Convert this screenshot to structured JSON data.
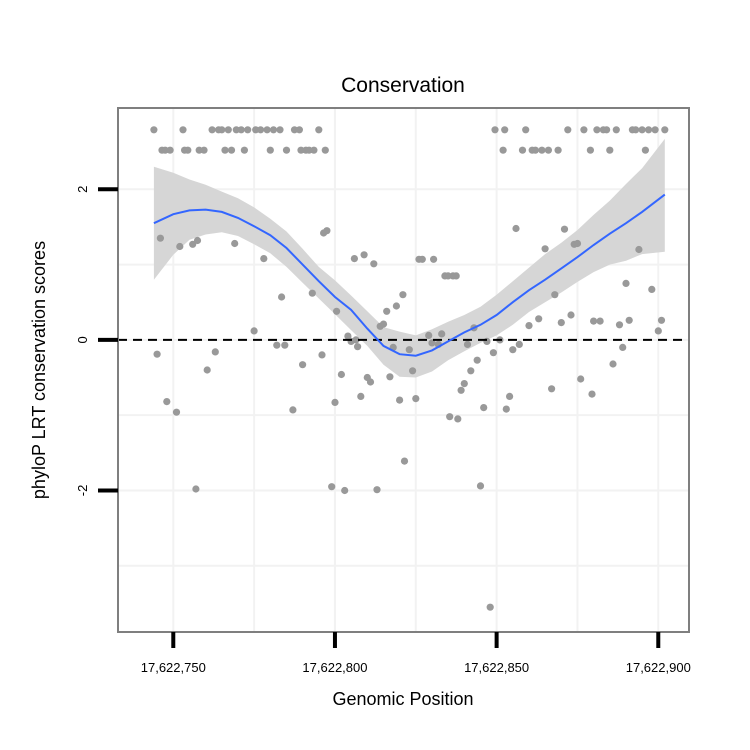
{
  "chart_data": {
    "type": "scatter",
    "title": "Conservation",
    "xlabel": "Genomic Position",
    "ylabel": "phyloP LRT conservation scores",
    "xlim": [
      17622732.9,
      17622909.5
    ],
    "ylim": [
      -3.88,
      3.08
    ],
    "x_ticks": [
      17622750,
      17622800,
      17622850,
      17622900
    ],
    "x_tick_labels": [
      "17,622,750",
      "17,622,800",
      "17,622,850",
      "17,622,900"
    ],
    "y_ticks": [
      -2,
      0,
      2
    ],
    "y_tick_labels": [
      "-2",
      "0",
      "2"
    ],
    "reference_line": {
      "y": 0,
      "style": "dashed"
    },
    "colors": {
      "points": "#999999",
      "smooth": "#3366ff",
      "ribbon": "#d6d6d6",
      "reference": "#000000",
      "grid": "#f2f2f2",
      "border": "#7f7f7f"
    },
    "points": [
      [
        17622744,
        2.79
      ],
      [
        17622745,
        -0.19
      ],
      [
        17622746,
        1.35
      ],
      [
        17622746.5,
        2.52
      ],
      [
        17622747.5,
        2.52
      ],
      [
        17622748,
        -0.82
      ],
      [
        17622749,
        2.52
      ],
      [
        17622751,
        -0.96
      ],
      [
        17622752,
        1.24
      ],
      [
        17622753,
        2.79
      ],
      [
        17622753.5,
        2.52
      ],
      [
        17622754.5,
        2.52
      ],
      [
        17622756,
        1.27
      ],
      [
        17622757,
        -1.98
      ],
      [
        17622757.5,
        1.32
      ],
      [
        17622758,
        2.52
      ],
      [
        17622759.5,
        2.52
      ],
      [
        17622760.5,
        -0.4
      ],
      [
        17622762,
        2.79
      ],
      [
        17622763,
        -0.16
      ],
      [
        17622764,
        2.79
      ],
      [
        17622765,
        2.79
      ],
      [
        17622766,
        2.52
      ],
      [
        17622767,
        2.79
      ],
      [
        17622768,
        2.52
      ],
      [
        17622769,
        1.28
      ],
      [
        17622769.5,
        2.79
      ],
      [
        17622771,
        2.79
      ],
      [
        17622772,
        2.52
      ],
      [
        17622773,
        2.79
      ],
      [
        17622775,
        0.12
      ],
      [
        17622775.5,
        2.79
      ],
      [
        17622777,
        2.79
      ],
      [
        17622778,
        1.08
      ],
      [
        17622779,
        2.79
      ],
      [
        17622780,
        2.52
      ],
      [
        17622781,
        2.79
      ],
      [
        17622782,
        -0.07
      ],
      [
        17622783,
        2.79
      ],
      [
        17622783.5,
        0.57
      ],
      [
        17622784.5,
        -0.07
      ],
      [
        17622785,
        2.52
      ],
      [
        17622787,
        -0.93
      ],
      [
        17622787.5,
        2.79
      ],
      [
        17622789,
        2.79
      ],
      [
        17622789.5,
        2.52
      ],
      [
        17622790,
        -0.33
      ],
      [
        17622791,
        2.52
      ],
      [
        17622792,
        2.52
      ],
      [
        17622793,
        0.62
      ],
      [
        17622793.5,
        2.52
      ],
      [
        17622795,
        2.79
      ],
      [
        17622796,
        -0.2
      ],
      [
        17622796.5,
        1.42
      ],
      [
        17622797.5,
        1.45
      ],
      [
        17622797,
        2.52
      ],
      [
        17622799,
        -1.95
      ],
      [
        17622800,
        -0.83
      ],
      [
        17622800.5,
        0.38
      ],
      [
        17622802,
        -0.46
      ],
      [
        17622803,
        -2.0
      ],
      [
        17622804,
        0.05
      ],
      [
        17622805,
        -0.02
      ],
      [
        17622806,
        1.08
      ],
      [
        17622806.5,
        0.0
      ],
      [
        17622807,
        -0.09
      ],
      [
        17622808,
        -0.75
      ],
      [
        17622809,
        1.13
      ],
      [
        17622810,
        -0.5
      ],
      [
        17622811,
        -0.56
      ],
      [
        17622812,
        1.01
      ],
      [
        17622813,
        -1.99
      ],
      [
        17622814,
        0.18
      ],
      [
        17622815,
        0.21
      ],
      [
        17622816,
        0.38
      ],
      [
        17622817,
        -0.49
      ],
      [
        17622818,
        -0.1
      ],
      [
        17622819,
        0.45
      ],
      [
        17622820,
        -0.8
      ],
      [
        17622821,
        0.6
      ],
      [
        17622821.5,
        -1.61
      ],
      [
        17622823,
        -0.13
      ],
      [
        17622824,
        -0.41
      ],
      [
        17622825,
        -0.78
      ],
      [
        17622826,
        1.07
      ],
      [
        17622827,
        1.07
      ],
      [
        17622829,
        0.06
      ],
      [
        17622830,
        -0.04
      ],
      [
        17622830.5,
        1.07
      ],
      [
        17622832,
        -0.06
      ],
      [
        17622833,
        0.08
      ],
      [
        17622834,
        0.85
      ],
      [
        17622835,
        0.85
      ],
      [
        17622835.5,
        -1.02
      ],
      [
        17622836.5,
        0.85
      ],
      [
        17622837.5,
        0.85
      ],
      [
        17622838,
        -1.05
      ],
      [
        17622839,
        -0.67
      ],
      [
        17622840,
        -0.58
      ],
      [
        17622841,
        -0.06
      ],
      [
        17622842,
        -0.41
      ],
      [
        17622843,
        0.16
      ],
      [
        17622844,
        -0.27
      ],
      [
        17622845,
        -1.94
      ],
      [
        17622846,
        -0.9
      ],
      [
        17622847,
        -0.02
      ],
      [
        17622848,
        -3.55
      ],
      [
        17622849,
        -0.17
      ],
      [
        17622849.5,
        2.79
      ],
      [
        17622851,
        0.0
      ],
      [
        17622852,
        2.52
      ],
      [
        17622852.5,
        2.79
      ],
      [
        17622853,
        -0.92
      ],
      [
        17622854,
        -0.75
      ],
      [
        17622855,
        -0.13
      ],
      [
        17622856,
        1.48
      ],
      [
        17622857,
        -0.06
      ],
      [
        17622858,
        2.52
      ],
      [
        17622859,
        2.79
      ],
      [
        17622860,
        0.19
      ],
      [
        17622861,
        2.52
      ],
      [
        17622862,
        2.52
      ],
      [
        17622863,
        0.28
      ],
      [
        17622864,
        2.52
      ],
      [
        17622865,
        1.21
      ],
      [
        17622866,
        2.52
      ],
      [
        17622867,
        -0.65
      ],
      [
        17622868,
        0.6
      ],
      [
        17622869,
        2.52
      ],
      [
        17622870,
        0.23
      ],
      [
        17622871,
        1.47
      ],
      [
        17622872,
        2.79
      ],
      [
        17622873,
        0.33
      ],
      [
        17622874,
        1.27
      ],
      [
        17622875,
        1.28
      ],
      [
        17622876,
        -0.52
      ],
      [
        17622877,
        2.79
      ],
      [
        17622879,
        2.52
      ],
      [
        17622879.5,
        -0.72
      ],
      [
        17622880,
        0.25
      ],
      [
        17622881,
        2.79
      ],
      [
        17622882,
        0.25
      ],
      [
        17622883,
        2.79
      ],
      [
        17622884,
        2.79
      ],
      [
        17622885,
        2.52
      ],
      [
        17622886,
        -0.32
      ],
      [
        17622887,
        2.79
      ],
      [
        17622888,
        0.2
      ],
      [
        17622889,
        -0.1
      ],
      [
        17622890,
        0.75
      ],
      [
        17622891,
        0.26
      ],
      [
        17622892,
        2.79
      ],
      [
        17622893,
        2.79
      ],
      [
        17622894,
        1.2
      ],
      [
        17622895,
        2.79
      ],
      [
        17622896,
        2.52
      ],
      [
        17622897,
        2.79
      ],
      [
        17622898,
        0.67
      ],
      [
        17622899,
        2.79
      ],
      [
        17622900,
        0.12
      ],
      [
        17622901,
        0.26
      ],
      [
        17622902,
        2.79
      ]
    ],
    "smooth_line": [
      [
        17622744,
        1.55
      ],
      [
        17622750,
        1.67
      ],
      [
        17622755,
        1.72
      ],
      [
        17622760,
        1.73
      ],
      [
        17622765,
        1.7
      ],
      [
        17622770,
        1.62
      ],
      [
        17622775,
        1.51
      ],
      [
        17622780,
        1.39
      ],
      [
        17622785,
        1.22
      ],
      [
        17622790,
        1.0
      ],
      [
        17622795,
        0.78
      ],
      [
        17622800,
        0.57
      ],
      [
        17622805,
        0.4
      ],
      [
        17622810,
        0.15
      ],
      [
        17622815,
        -0.08
      ],
      [
        17622820,
        -0.19
      ],
      [
        17622825,
        -0.21
      ],
      [
        17622830,
        -0.14
      ],
      [
        17622835,
        -0.02
      ],
      [
        17622840,
        0.1
      ],
      [
        17622845,
        0.2
      ],
      [
        17622850,
        0.33
      ],
      [
        17622855,
        0.5
      ],
      [
        17622860,
        0.66
      ],
      [
        17622865,
        0.8
      ],
      [
        17622870,
        0.95
      ],
      [
        17622875,
        1.1
      ],
      [
        17622880,
        1.26
      ],
      [
        17622885,
        1.41
      ],
      [
        17622890,
        1.55
      ],
      [
        17622895,
        1.7
      ],
      [
        17622902,
        1.93
      ]
    ],
    "ribbon_upper": [
      [
        17622744,
        2.3
      ],
      [
        17622750,
        2.22
      ],
      [
        17622755,
        2.13
      ],
      [
        17622760,
        2.06
      ],
      [
        17622765,
        1.97
      ],
      [
        17622770,
        1.88
      ],
      [
        17622775,
        1.76
      ],
      [
        17622780,
        1.61
      ],
      [
        17622785,
        1.44
      ],
      [
        17622790,
        1.21
      ],
      [
        17622795,
        0.97
      ],
      [
        17622800,
        0.79
      ],
      [
        17622805,
        0.59
      ],
      [
        17622810,
        0.38
      ],
      [
        17622815,
        0.17
      ],
      [
        17622820,
        0.11
      ],
      [
        17622825,
        0.06
      ],
      [
        17622830,
        0.14
      ],
      [
        17622835,
        0.24
      ],
      [
        17622840,
        0.33
      ],
      [
        17622845,
        0.44
      ],
      [
        17622850,
        0.6
      ],
      [
        17622855,
        0.78
      ],
      [
        17622860,
        0.96
      ],
      [
        17622865,
        1.14
      ],
      [
        17622870,
        1.29
      ],
      [
        17622875,
        1.46
      ],
      [
        17622880,
        1.66
      ],
      [
        17622885,
        1.85
      ],
      [
        17622890,
        2.07
      ],
      [
        17622895,
        2.28
      ],
      [
        17622902,
        2.67
      ]
    ],
    "ribbon_lower": [
      [
        17622744,
        0.8
      ],
      [
        17622750,
        1.13
      ],
      [
        17622755,
        1.33
      ],
      [
        17622760,
        1.4
      ],
      [
        17622765,
        1.43
      ],
      [
        17622770,
        1.38
      ],
      [
        17622775,
        1.27
      ],
      [
        17622780,
        1.15
      ],
      [
        17622785,
        0.97
      ],
      [
        17622790,
        0.76
      ],
      [
        17622795,
        0.55
      ],
      [
        17622800,
        0.34
      ],
      [
        17622805,
        0.13
      ],
      [
        17622810,
        -0.08
      ],
      [
        17622815,
        -0.33
      ],
      [
        17622820,
        -0.49
      ],
      [
        17622825,
        -0.5
      ],
      [
        17622830,
        -0.42
      ],
      [
        17622835,
        -0.27
      ],
      [
        17622840,
        -0.15
      ],
      [
        17622845,
        -0.04
      ],
      [
        17622850,
        0.06
      ],
      [
        17622855,
        0.2
      ],
      [
        17622860,
        0.37
      ],
      [
        17622865,
        0.5
      ],
      [
        17622870,
        0.63
      ],
      [
        17622875,
        0.77
      ],
      [
        17622880,
        0.9
      ],
      [
        17622885,
        1.0
      ],
      [
        17622890,
        1.05
      ],
      [
        17622895,
        1.14
      ],
      [
        17622902,
        1.17
      ]
    ]
  }
}
